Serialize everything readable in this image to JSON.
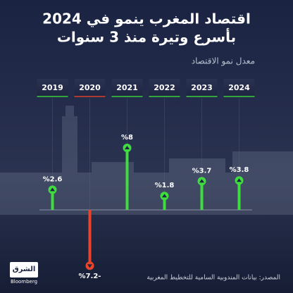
{
  "chart_data": {
    "type": "lollipop",
    "title_lines": [
      "اقتصاد المغرب ينمو في 2024",
      "بأسرع وتيرة منذ 3 سنوات"
    ],
    "subtitle": "معدل نمو الاقتصاد",
    "categories": [
      "2019",
      "2020",
      "2021",
      "2022",
      "2023",
      "2024"
    ],
    "values": [
      2.6,
      -7.2,
      8,
      1.8,
      3.7,
      3.8
    ],
    "value_labels": [
      "%2.6",
      "%7.2-",
      "%8",
      "%1.8",
      "%3.7",
      "%3.8"
    ],
    "color": "#3fdc3f",
    "negative_color": "#e8452c",
    "source": "المصدر: بيانات المندوبية السامية للتخطيط المغربية"
  },
  "logo": {
    "name": "الشرق",
    "partner": "Bloomberg"
  }
}
